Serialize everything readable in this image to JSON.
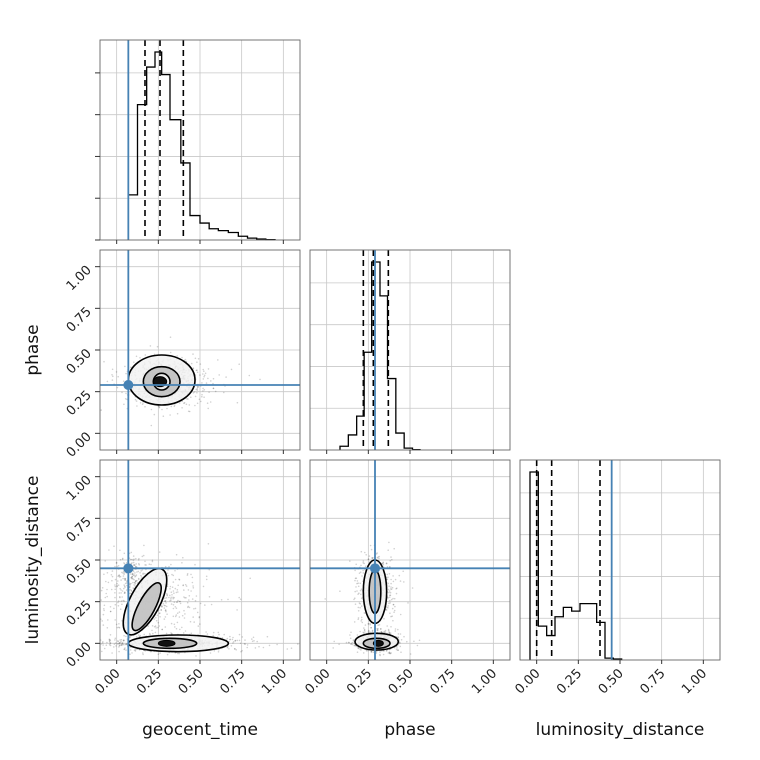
{
  "chart_data": {
    "type": "corner",
    "parameters": [
      "geocent_time",
      "phase",
      "luminosity_distance"
    ],
    "axis_labels": [
      "geocent_time",
      "phase",
      "luminosity_distance"
    ],
    "ticks": [
      0.0,
      0.25,
      0.5,
      0.75,
      1.0
    ],
    "tick_labels": [
      "0.00",
      "0.25",
      "0.50",
      "0.75",
      "1.00"
    ],
    "truths": {
      "geocent_time": 0.07,
      "phase": 0.29,
      "luminosity_distance": 0.45
    },
    "truth_color": "#4682b4",
    "grid": true,
    "histograms": [
      {
        "parameter": "geocent_time",
        "xlim": [
          -0.1,
          1.1
        ],
        "bin_edges": [
          0.07,
          0.125,
          0.18,
          0.23,
          0.27,
          0.32,
          0.385,
          0.44,
          0.5,
          0.555,
          0.61,
          0.67,
          0.73,
          0.785,
          0.84,
          0.895,
          0.95
        ],
        "heights": [
          0.24,
          0.72,
          0.92,
          1.0,
          0.88,
          0.64,
          0.41,
          0.13,
          0.09,
          0.06,
          0.05,
          0.04,
          0.02,
          0.01,
          0.005,
          0.002
        ],
        "quantiles": [
          0.17,
          0.26,
          0.4
        ]
      },
      {
        "parameter": "phase",
        "xlim": [
          -0.1,
          1.1
        ],
        "bin_edges": [
          0.08,
          0.13,
          0.18,
          0.225,
          0.27,
          0.32,
          0.365,
          0.415,
          0.465,
          0.515,
          0.56
        ],
        "heights": [
          0.02,
          0.08,
          0.18,
          0.52,
          1.0,
          0.82,
          0.38,
          0.09,
          0.01,
          0.002
        ],
        "quantiles": [
          0.22,
          0.28,
          0.37
        ]
      },
      {
        "parameter": "luminosity_distance",
        "xlim": [
          -0.1,
          1.1
        ],
        "bin_edges": [
          -0.04,
          0.01,
          0.06,
          0.11,
          0.16,
          0.21,
          0.26,
          0.31,
          0.36,
          0.41,
          0.46,
          0.51
        ],
        "heights": [
          1.0,
          0.18,
          0.13,
          0.23,
          0.28,
          0.26,
          0.3,
          0.3,
          0.2,
          0.01,
          0.005
        ],
        "quantiles": [
          0.0,
          0.09,
          0.38
        ]
      }
    ],
    "panels_2d": [
      {
        "x": "geocent_time",
        "y": "phase",
        "xlim": [
          -0.1,
          1.1
        ],
        "ylim": [
          -0.1,
          1.1
        ],
        "blobs": [
          {
            "cx": 0.29,
            "cy": 0.31,
            "sx": 0.11,
            "sy": 0.07,
            "n": 900
          }
        ],
        "contours": [
          {
            "cx": 0.27,
            "cy": 0.32,
            "rx": 0.2,
            "ry": 0.15
          },
          {
            "cx": 0.27,
            "cy": 0.31,
            "rx": 0.11,
            "ry": 0.09
          },
          {
            "cx": 0.27,
            "cy": 0.31,
            "rx": 0.05,
            "ry": 0.05
          }
        ],
        "core": {
          "cx": 0.26,
          "cy": 0.31,
          "rx": 0.04,
          "ry": 0.03
        }
      },
      {
        "x": "geocent_time",
        "y": "luminosity_distance",
        "xlim": [
          -0.1,
          1.1
        ],
        "ylim": [
          -0.1,
          1.1
        ],
        "blobs": [
          {
            "cx": 0.34,
            "cy": 0.0,
            "sx": 0.18,
            "sy": 0.025,
            "n": 700
          },
          {
            "cx": 0.2,
            "cy": 0.26,
            "sx": 0.14,
            "sy": 0.12,
            "n": 500
          },
          {
            "cx": 0.09,
            "cy": 0.42,
            "sx": 0.05,
            "sy": 0.06,
            "n": 150
          }
        ],
        "contours": [
          {
            "cx": 0.37,
            "cy": 0.0,
            "rx": 0.3,
            "ry": 0.05
          },
          {
            "cx": 0.32,
            "cy": 0.0,
            "rx": 0.16,
            "ry": 0.03
          },
          {
            "cx": 0.17,
            "cy": 0.25,
            "rx": 0.09,
            "ry": 0.22,
            "rot": 28
          },
          {
            "cx": 0.18,
            "cy": 0.22,
            "rx": 0.05,
            "ry": 0.16,
            "rot": 28
          }
        ],
        "core": {
          "cx": 0.3,
          "cy": 0.0,
          "rx": 0.05,
          "ry": 0.018
        }
      },
      {
        "x": "phase",
        "y": "luminosity_distance",
        "xlim": [
          -0.1,
          1.1
        ],
        "ylim": [
          -0.1,
          1.1
        ],
        "blobs": [
          {
            "cx": 0.3,
            "cy": 0.01,
            "sx": 0.06,
            "sy": 0.03,
            "n": 650
          },
          {
            "cx": 0.29,
            "cy": 0.32,
            "sx": 0.05,
            "sy": 0.1,
            "n": 550
          }
        ],
        "contours": [
          {
            "cx": 0.3,
            "cy": 0.01,
            "rx": 0.13,
            "ry": 0.05
          },
          {
            "cx": 0.3,
            "cy": 0.0,
            "rx": 0.08,
            "ry": 0.03
          },
          {
            "cx": 0.29,
            "cy": 0.31,
            "rx": 0.07,
            "ry": 0.19
          },
          {
            "cx": 0.29,
            "cy": 0.31,
            "rx": 0.035,
            "ry": 0.13
          }
        ],
        "core": {
          "cx": 0.31,
          "cy": 0.0,
          "rx": 0.03,
          "ry": 0.018
        }
      }
    ]
  }
}
